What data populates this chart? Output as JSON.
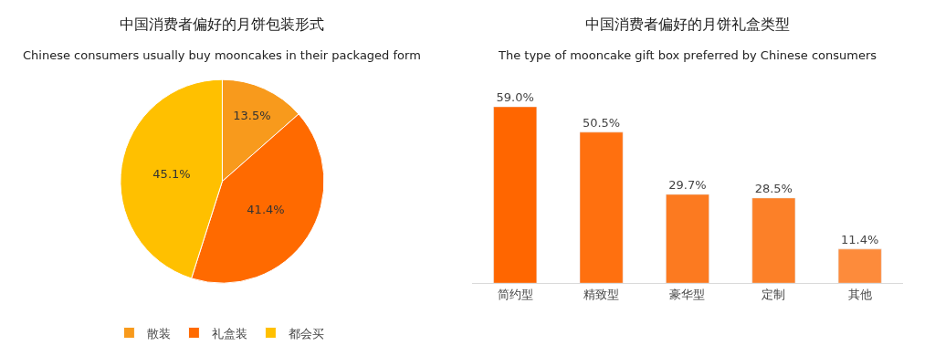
{
  "chart_data": [
    {
      "type": "pie",
      "title": "中国消费者偏好的月饼包装形式",
      "subtitle": "Chinese consumers usually buy mooncakes in their packaged form",
      "categories": [
        "散装",
        "礼盒装",
        "都会买"
      ],
      "values": [
        13.5,
        41.4,
        45.1
      ],
      "colors": [
        "#f89a1c",
        "#ff6a00",
        "#ffc000"
      ],
      "value_labels": [
        "13.5%",
        "41.4%",
        "45.1%"
      ],
      "legend": "bottom"
    },
    {
      "type": "bar",
      "title": "中国消费者偏好的月饼礼盒类型",
      "subtitle": "The type of mooncake gift box preferred by Chinese consumers",
      "categories": [
        "简约型",
        "精致型",
        "豪华型",
        "定制",
        "其他"
      ],
      "values": [
        59.0,
        50.5,
        29.7,
        28.5,
        11.4
      ],
      "colors": [
        "#ff6600",
        "#ff700f",
        "#fc7a20",
        "#fc8028",
        "#fd8b3b"
      ],
      "value_labels": [
        "59.0%",
        "50.5%",
        "29.7%",
        "28.5%",
        "11.4%"
      ],
      "tick_labels": "x"
    }
  ]
}
